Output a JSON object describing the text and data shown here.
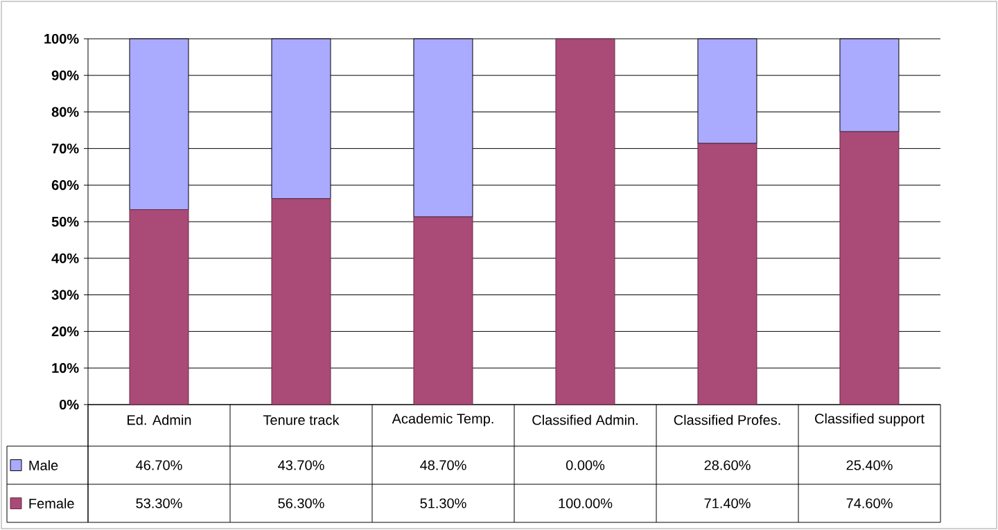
{
  "chart_data": {
    "type": "bar",
    "stacked": true,
    "categories": [
      "Ed. Admin",
      "Tenure track",
      "Academic Temp.",
      "Classified Admin.",
      "Classified Profes.",
      "Classified support"
    ],
    "series": [
      {
        "name": "Female",
        "color": "#aa4a77",
        "values": [
          53.3,
          56.3,
          51.3,
          100.0,
          71.4,
          74.6
        ],
        "value_labels": [
          "53.30%",
          "56.30%",
          "51.30%",
          "100.00%",
          "71.40%",
          "74.60%"
        ]
      },
      {
        "name": "Male",
        "color": "#aaaaff",
        "values": [
          46.7,
          43.7,
          48.7,
          0.0,
          28.6,
          25.4
        ],
        "value_labels": [
          "46.70%",
          "43.70%",
          "48.70%",
          "0.00%",
          "28.60%",
          "25.40%"
        ]
      }
    ],
    "ylim": [
      0,
      100
    ],
    "yticks": [
      {
        "value": 0,
        "label": "0%"
      },
      {
        "value": 10,
        "label": "10%"
      },
      {
        "value": 20,
        "label": "20%"
      },
      {
        "value": 30,
        "label": "30%"
      },
      {
        "value": 40,
        "label": "40%"
      },
      {
        "value": 50,
        "label": "50%"
      },
      {
        "value": 60,
        "label": "60%"
      },
      {
        "value": 70,
        "label": "70%"
      },
      {
        "value": 80,
        "label": "80%"
      },
      {
        "value": 90,
        "label": "90%"
      },
      {
        "value": 100,
        "label": "100%"
      }
    ],
    "grid": "y",
    "legend": "bottom left"
  }
}
